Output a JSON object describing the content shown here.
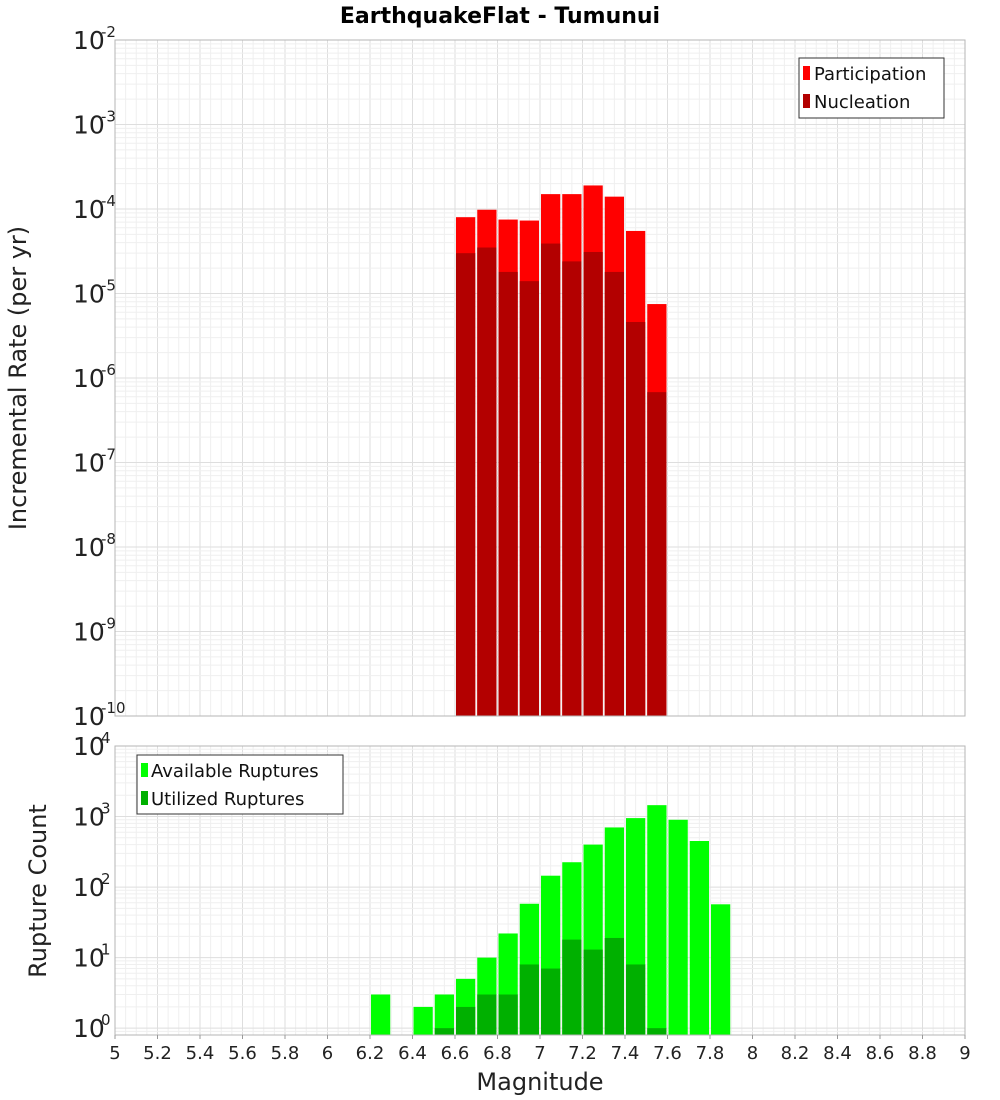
{
  "title": "EarthquakeFlat - Tumunui",
  "xlabel": "Magnitude",
  "colors": {
    "participation": "#ff0000",
    "nucleation": "#b30000",
    "available": "#00ff00",
    "utilized": "#00b000"
  },
  "chart_data": [
    {
      "type": "bar",
      "panel": "top",
      "scale": "log",
      "title": "EarthquakeFlat - Tumunui",
      "ylabel": "Incremental Rate (per yr)",
      "xlabel": "Magnitude",
      "xlim": [
        5,
        9
      ],
      "ylim": [
        1e-10,
        0.01
      ],
      "bin_width": 0.1,
      "legend": "top-right",
      "x": [
        6.65,
        6.75,
        6.85,
        6.95,
        7.05,
        7.15,
        7.25,
        7.35,
        7.45,
        7.55
      ],
      "series": [
        {
          "name": "Participation",
          "color": "#ff0000",
          "values": [
            8e-05,
            9.8e-05,
            7.5e-05,
            7.3e-05,
            0.00015,
            0.00015,
            0.00019,
            0.00014,
            5.5e-05,
            7.5e-06
          ]
        },
        {
          "name": "Nucleation",
          "color": "#b30000",
          "values": [
            3e-05,
            3.5e-05,
            1.8e-05,
            1.4e-05,
            3.9e-05,
            2.4e-05,
            3.1e-05,
            1.8e-05,
            4.6e-06,
            6.8e-07
          ]
        }
      ],
      "y_ticks": [
        {
          "base": "10",
          "exp": "-10"
        },
        {
          "base": "10",
          "exp": "-9"
        },
        {
          "base": "10",
          "exp": "-8"
        },
        {
          "base": "10",
          "exp": "-7"
        },
        {
          "base": "10",
          "exp": "-6"
        },
        {
          "base": "10",
          "exp": "-5"
        },
        {
          "base": "10",
          "exp": "-4"
        },
        {
          "base": "10",
          "exp": "-3"
        },
        {
          "base": "10",
          "exp": "-2"
        }
      ]
    },
    {
      "type": "bar",
      "panel": "bottom",
      "scale": "log",
      "ylabel": "Rupture Count",
      "xlabel": "Magnitude",
      "xlim": [
        5,
        9
      ],
      "ylim": [
        0.8,
        10000
      ],
      "bin_width": 0.1,
      "legend": "top-left",
      "x": [
        6.25,
        6.45,
        6.55,
        6.65,
        6.75,
        6.85,
        6.95,
        7.05,
        7.15,
        7.25,
        7.35,
        7.45,
        7.55,
        7.65,
        7.75,
        7.85
      ],
      "series": [
        {
          "name": "Available Ruptures",
          "color": "#00ff00",
          "values": [
            3,
            2,
            3,
            5,
            10,
            22,
            58,
            145,
            225,
            400,
            700,
            950,
            1450,
            900,
            450,
            57
          ]
        },
        {
          "name": "Utilized Ruptures",
          "color": "#00b000",
          "values": [
            null,
            null,
            1,
            2,
            3,
            3,
            8,
            7,
            18,
            13,
            19,
            8,
            1,
            null,
            null,
            null
          ]
        }
      ],
      "y_ticks": [
        {
          "base": "10",
          "exp": "0"
        },
        {
          "base": "10",
          "exp": "1"
        },
        {
          "base": "10",
          "exp": "2"
        },
        {
          "base": "10",
          "exp": "3"
        },
        {
          "base": "10",
          "exp": "4"
        }
      ],
      "x_ticks": [
        "5",
        "5.2",
        "5.4",
        "5.6",
        "5.8",
        "6",
        "6.2",
        "6.4",
        "6.6",
        "6.8",
        "7",
        "7.2",
        "7.4",
        "7.6",
        "7.8",
        "8",
        "8.2",
        "8.4",
        "8.6",
        "8.8",
        "9"
      ]
    }
  ]
}
